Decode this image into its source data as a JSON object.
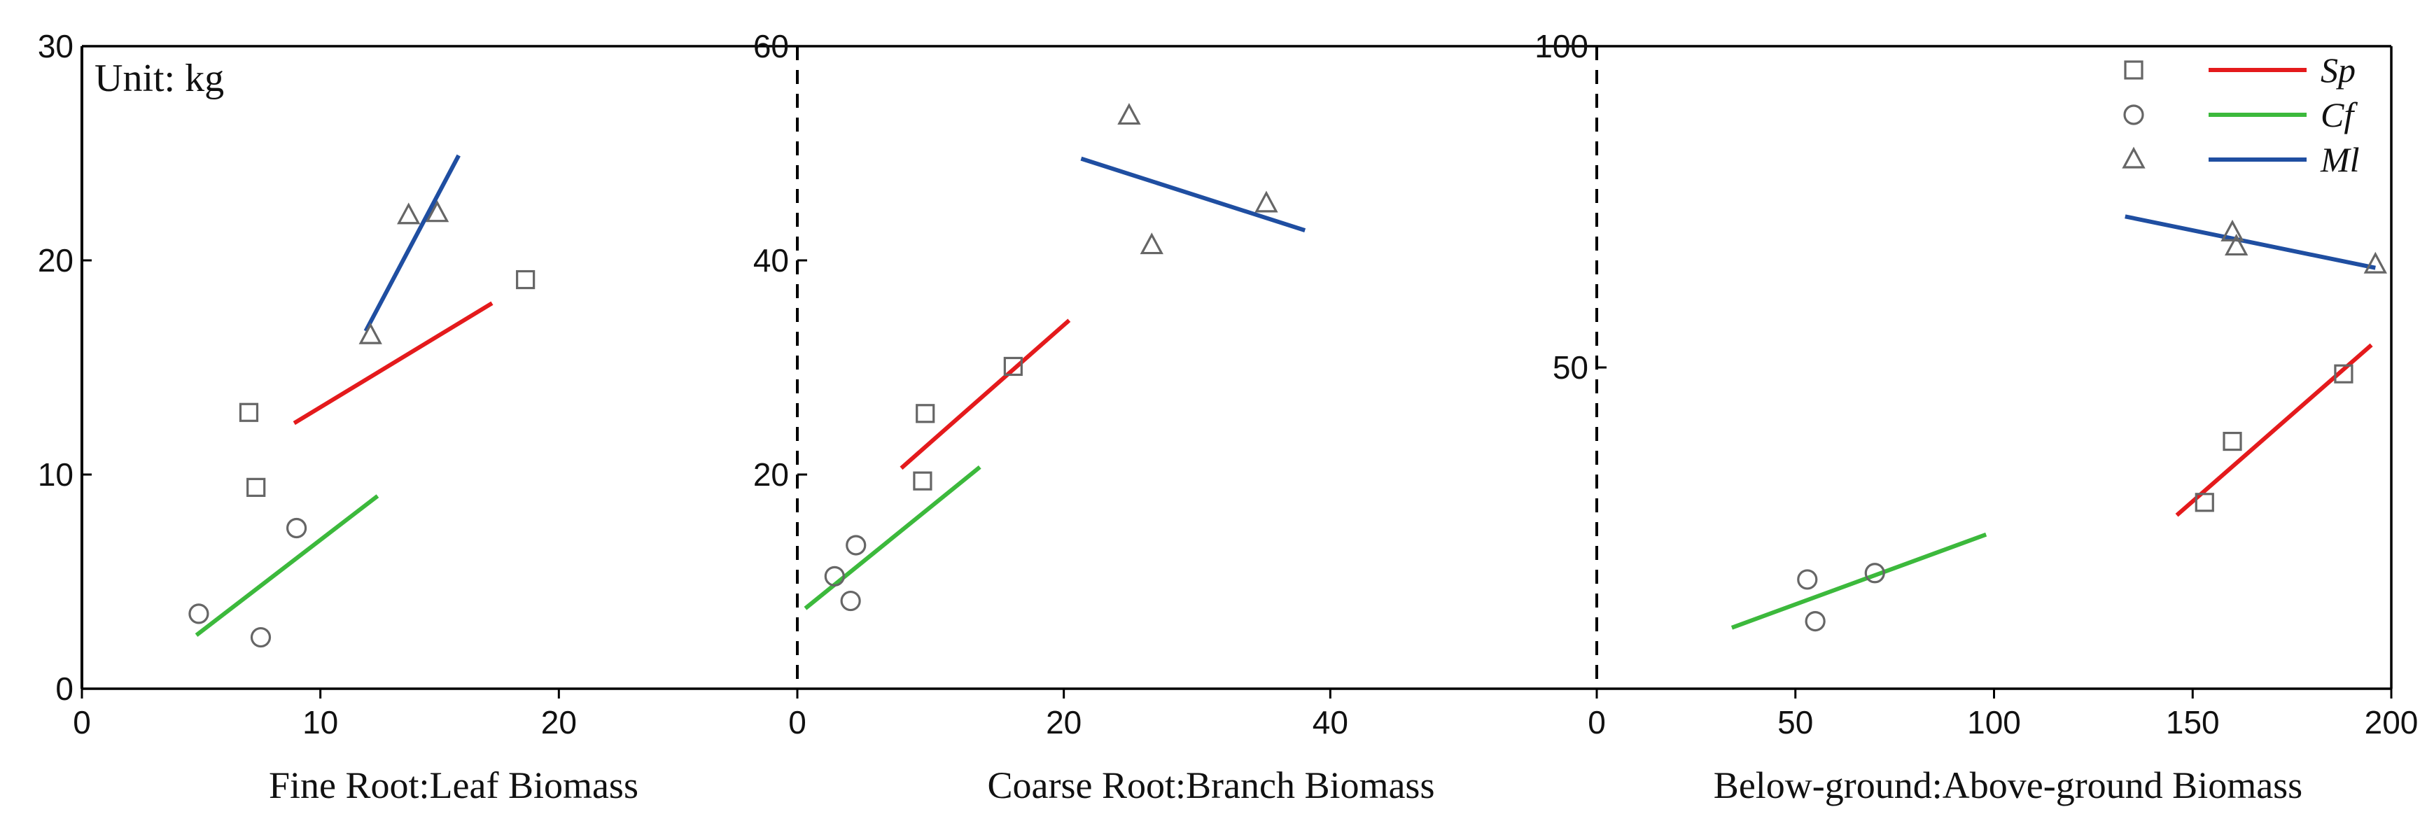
{
  "chart_data": {
    "type": "scatter",
    "unit_label": "Unit: kg",
    "legend": [
      {
        "name": "Sp",
        "marker": "square",
        "color": "#e41a1c"
      },
      {
        "name": "Cf",
        "marker": "circle",
        "color": "#3cb93c"
      },
      {
        "name": "Ml",
        "marker": "triangle",
        "color": "#1f4ea1"
      }
    ],
    "marker_color": "#666666",
    "panels": [
      {
        "xlabel": "Fine Root:Leaf Biomass",
        "xlim": [
          0,
          30
        ],
        "ylim": [
          0,
          30
        ],
        "xticks": [
          0,
          10,
          20
        ],
        "yticks": [
          0,
          10,
          20,
          30
        ],
        "left_axis_style": "solid",
        "series": [
          {
            "name": "Sp",
            "points": [
              [
                7,
                12.9
              ],
              [
                7.3,
                9.4
              ],
              [
                18.6,
                19.1
              ]
            ],
            "fit": [
              [
                8.9,
                12.4
              ],
              [
                17.2,
                18.0
              ]
            ]
          },
          {
            "name": "Cf",
            "points": [
              [
                4.9,
                3.5
              ],
              [
                7.5,
                2.4
              ],
              [
                9,
                7.5
              ]
            ],
            "fit": [
              [
                4.8,
                2.5
              ],
              [
                12.4,
                9.0
              ]
            ]
          },
          {
            "name": "Ml",
            "points": [
              [
                12.1,
                16.5
              ],
              [
                13.7,
                22.1
              ],
              [
                14.9,
                22.2
              ]
            ],
            "fit": [
              [
                11.9,
                16.7
              ],
              [
                15.8,
                24.9
              ]
            ]
          }
        ]
      },
      {
        "xlabel": "Coarse Root:Branch Biomass",
        "xlim": [
          0,
          60
        ],
        "ylim": [
          0,
          60
        ],
        "xticks": [
          0,
          20,
          40
        ],
        "yticks": [
          20,
          40,
          60
        ],
        "left_axis_style": "dashed",
        "series": [
          {
            "name": "Sp",
            "points": [
              [
                9.4,
                19.4
              ],
              [
                9.6,
                25.7
              ],
              [
                16.2,
                30.1
              ]
            ],
            "fit": [
              [
                7.8,
                20.6
              ],
              [
                20.4,
                34.4
              ]
            ]
          },
          {
            "name": "Cf",
            "points": [
              [
                2.8,
                10.5
              ],
              [
                4.0,
                8.2
              ],
              [
                4.4,
                13.4
              ]
            ],
            "fit": [
              [
                0.6,
                7.5
              ],
              [
                13.7,
                20.7
              ]
            ]
          },
          {
            "name": "Ml",
            "points": [
              [
                24.9,
                53.5
              ],
              [
                26.6,
                41.4
              ],
              [
                35.2,
                45.3
              ]
            ],
            "fit": [
              [
                21.3,
                49.5
              ],
              [
                38.1,
                42.8
              ]
            ]
          }
        ]
      },
      {
        "xlabel": "Below-ground:Above-ground Biomass",
        "xlim": [
          0,
          200
        ],
        "ylim": [
          0,
          100
        ],
        "xticks": [
          0,
          50,
          100,
          150,
          200
        ],
        "yticks": [
          50,
          100
        ],
        "left_axis_style": "dashed",
        "series": [
          {
            "name": "Sp",
            "points": [
              [
                153,
                29
              ],
              [
                160,
                38.5
              ],
              [
                188,
                49
              ]
            ],
            "fit": [
              [
                146,
                27
              ],
              [
                195,
                53.5
              ]
            ]
          },
          {
            "name": "Cf",
            "points": [
              [
                53,
                17
              ],
              [
                55,
                10.5
              ],
              [
                70,
                18
              ]
            ],
            "fit": [
              [
                34,
                9.5
              ],
              [
                98,
                24
              ]
            ]
          },
          {
            "name": "Ml",
            "points": [
              [
                160,
                71
              ],
              [
                161,
                68.8
              ],
              [
                196,
                66
              ]
            ],
            "fit": [
              [
                133,
                73.5
              ],
              [
                196,
                65.5
              ]
            ]
          }
        ]
      }
    ]
  }
}
